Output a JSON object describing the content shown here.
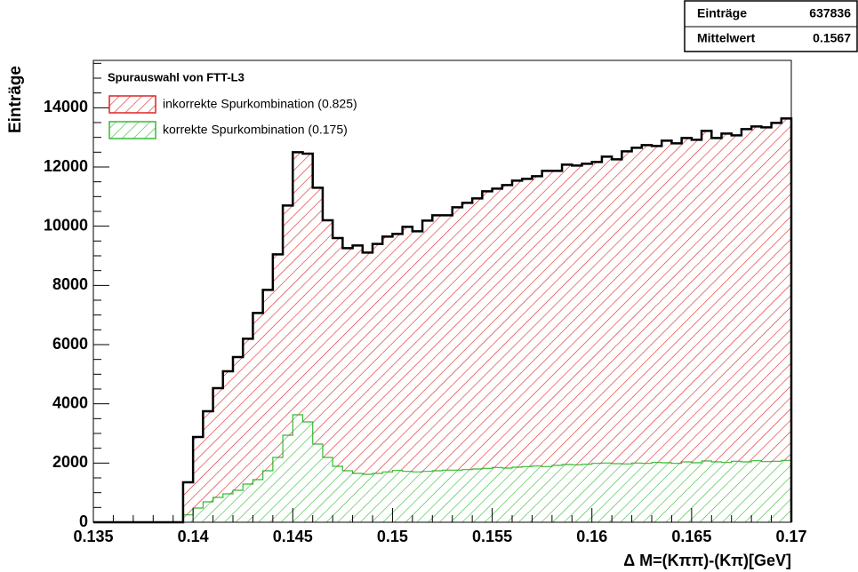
{
  "chart_data": {
    "type": "histogram",
    "stacked": true,
    "xlabel": "Δ M=(Kππ)-(Kπ)[GeV]",
    "ylabel": "Einträge",
    "legend_title": "Spurauswahl von FTT-L3",
    "legend": "top-left",
    "stats": {
      "rows": [
        {
          "label": "Einträge",
          "value": "637836"
        },
        {
          "label": "Mittelwert",
          "value": "0.1567"
        }
      ]
    },
    "bins": [
      0.135,
      0.1355,
      0.136,
      0.1365,
      0.137,
      0.1375,
      0.138,
      0.1385,
      0.139,
      0.1395,
      0.14,
      0.1405,
      0.141,
      0.1415,
      0.142,
      0.1425,
      0.143,
      0.1435,
      0.144,
      0.1445,
      0.145,
      0.1455,
      0.146,
      0.1465,
      0.147,
      0.1475,
      0.148,
      0.1485,
      0.149,
      0.1495,
      0.15,
      0.1505,
      0.151,
      0.1515,
      0.152,
      0.1525,
      0.153,
      0.1535,
      0.154,
      0.1545,
      0.155,
      0.1555,
      0.156,
      0.1565,
      0.157,
      0.1575,
      0.158,
      0.1585,
      0.159,
      0.1595,
      0.16,
      0.1605,
      0.161,
      0.1615,
      0.162,
      0.1625,
      0.163,
      0.1635,
      0.164,
      0.1645,
      0.165,
      0.1655,
      0.166,
      0.1665,
      0.167,
      0.1675,
      0.168,
      0.1685,
      0.169,
      0.1695,
      0.17
    ],
    "series": [
      {
        "name": "korrekte Spurkombination (0.175)",
        "color": "#33bb33",
        "values": [
          0,
          0,
          0,
          0,
          0,
          0,
          0,
          0,
          0,
          250,
          480,
          690,
          840,
          960,
          1080,
          1290,
          1440,
          1740,
          2190,
          2940,
          3630,
          3390,
          2640,
          2190,
          1890,
          1740,
          1650,
          1620,
          1650,
          1700,
          1750,
          1720,
          1700,
          1720,
          1740,
          1760,
          1760,
          1780,
          1800,
          1820,
          1850,
          1830,
          1860,
          1880,
          1900,
          1880,
          1920,
          1950,
          1940,
          1960,
          1990,
          2000,
          1980,
          1970,
          2000,
          1990,
          2020,
          2010,
          1990,
          2040,
          2010,
          2070,
          2040,
          2020,
          2060,
          2040,
          2080,
          2050,
          2060,
          2090
        ]
      },
      {
        "name": "inkorrekte Spurkombination (0.825)",
        "color": "#dd2222",
        "values": [
          0,
          0,
          0,
          0,
          0,
          0,
          0,
          0,
          0,
          1100,
          2400,
          3060,
          3690,
          4140,
          4500,
          4910,
          5630,
          6110,
          6860,
          7760,
          8870,
          9060,
          8660,
          8010,
          7710,
          7520,
          7700,
          7490,
          7750,
          7950,
          7990,
          8260,
          8130,
          8470,
          8630,
          8610,
          8880,
          9010,
          9140,
          9360,
          9420,
          9560,
          9680,
          9720,
          9790,
          9990,
          9950,
          10130,
          10110,
          10150,
          10180,
          10350,
          10280,
          10560,
          10650,
          10750,
          10690,
          10880,
          10810,
          10940,
          10910,
          11150,
          10940,
          11110,
          11010,
          11240,
          11290,
          11290,
          11430,
          11550
        ]
      }
    ],
    "xlim": [
      0.135,
      0.17
    ],
    "xticks": [
      0.135,
      0.14,
      0.145,
      0.15,
      0.155,
      0.16,
      0.165,
      0.17
    ],
    "ylim": [
      0,
      15600
    ],
    "yticks": [
      0,
      2000,
      4000,
      6000,
      8000,
      10000,
      12000,
      14000
    ]
  }
}
